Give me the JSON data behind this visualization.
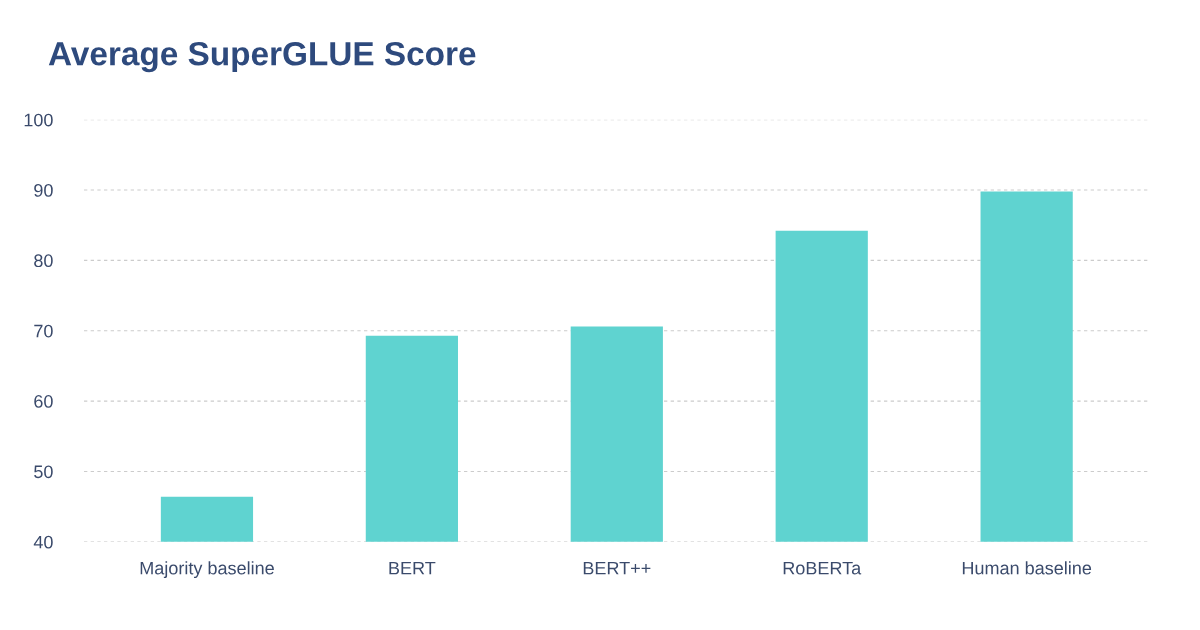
{
  "chart_data": {
    "type": "bar",
    "title": "Average SuperGLUE Score",
    "categories": [
      "Majority baseline",
      "BERT",
      "BERT++",
      "RoBERTa",
      "Human baseline"
    ],
    "values": [
      46.4,
      69.3,
      70.6,
      84.2,
      89.8
    ],
    "color": "#5fd3d0",
    "ylim": [
      40,
      100
    ],
    "yticks": [
      40,
      50,
      60,
      70,
      80,
      90,
      100
    ],
    "grid": "y"
  }
}
